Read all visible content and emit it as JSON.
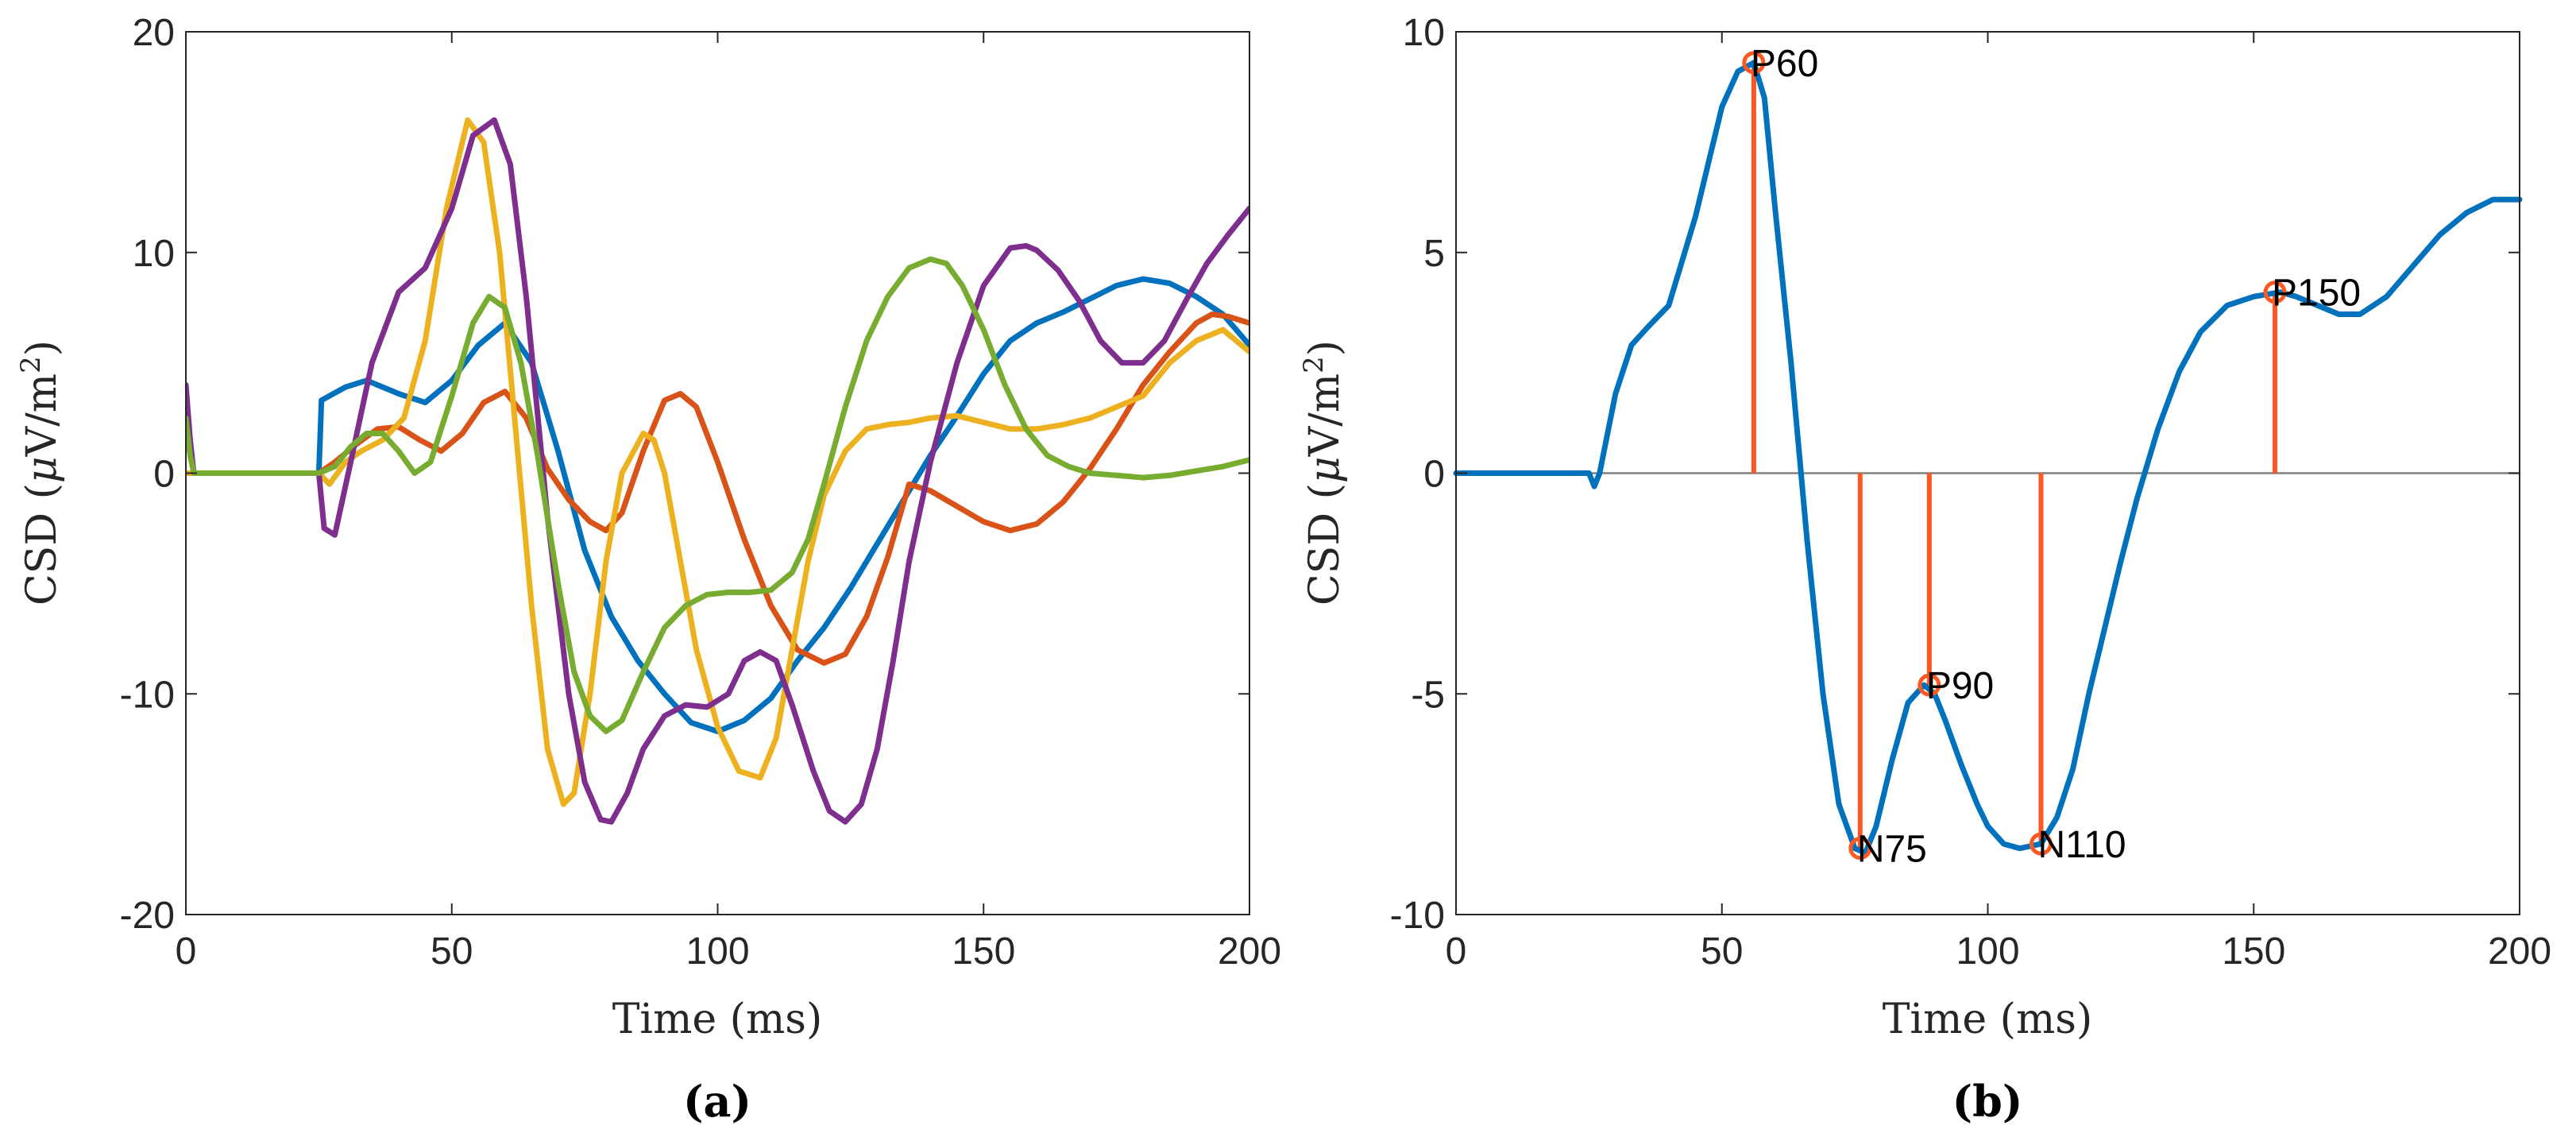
{
  "chart_data": [
    {
      "type": "line",
      "panel": "a",
      "caption": "(a)",
      "xlabel": "Time (ms)",
      "ylabel": "CSD (μV/m²)",
      "ylabel_parts": {
        "prefix": "CSD (",
        "mu": "μ",
        "unit": "V/m",
        "exp": "2",
        "suffix": ")"
      },
      "xlim": [
        0,
        200
      ],
      "ylim": [
        -20,
        20
      ],
      "xticks": [
        0,
        50,
        100,
        150,
        200
      ],
      "yticks": [
        -20,
        -10,
        0,
        10,
        20
      ],
      "colors": {
        "blue": "#0072BD",
        "orange": "#D95319",
        "yellow": "#EDB120",
        "purple": "#7E2F8E",
        "green": "#77AC30",
        "axis": "#262626"
      },
      "series": [
        {
          "name": "blue",
          "color": "#0072BD",
          "x": [
            0,
            25,
            25.5,
            30,
            34,
            40,
            45,
            50,
            55,
            60,
            65,
            70,
            75,
            80,
            85,
            90,
            95,
            100,
            105,
            110,
            115,
            120,
            125,
            130,
            135,
            140,
            145,
            150,
            155,
            160,
            165,
            170,
            175,
            180,
            185,
            190,
            195,
            200
          ],
          "y": [
            0,
            0,
            3.3,
            3.9,
            4.2,
            3.6,
            3.2,
            4.2,
            5.8,
            6.8,
            5.0,
            1.0,
            -3.5,
            -6.5,
            -8.5,
            -10,
            -11.3,
            -11.7,
            -11.2,
            -10.2,
            -8.5,
            -7,
            -5.2,
            -3.2,
            -1.2,
            0.8,
            2.6,
            4.5,
            6.0,
            6.8,
            7.3,
            7.9,
            8.5,
            8.8,
            8.6,
            8.0,
            7.2,
            5.8
          ]
        },
        {
          "name": "orange",
          "color": "#D95319",
          "x": [
            0,
            25,
            28,
            32,
            36,
            40,
            44,
            48,
            52,
            56,
            60,
            64,
            68,
            72,
            76,
            79,
            82,
            86,
            90,
            93,
            96,
            100,
            105,
            110,
            115,
            120,
            124,
            128,
            132,
            136,
            140,
            145,
            150,
            155,
            160,
            165,
            170,
            175,
            180,
            185,
            190,
            193,
            196,
            200
          ],
          "y": [
            0,
            0,
            0.5,
            1.3,
            2.0,
            2.1,
            1.5,
            1.0,
            1.8,
            3.2,
            3.7,
            2.5,
            0.2,
            -1.2,
            -2.2,
            -2.6,
            -1.8,
            1.0,
            3.3,
            3.6,
            3.0,
            0.5,
            -3.0,
            -6.0,
            -8.0,
            -8.6,
            -8.2,
            -6.5,
            -3.8,
            -0.5,
            -0.8,
            -1.5,
            -2.2,
            -2.6,
            -2.3,
            -1.3,
            0.2,
            2.0,
            4.0,
            5.5,
            6.8,
            7.2,
            7.1,
            6.8
          ]
        },
        {
          "name": "yellow",
          "color": "#EDB120",
          "x": [
            0,
            25,
            27,
            30,
            33,
            37,
            41,
            45,
            49,
            53,
            56,
            59,
            62,
            65,
            68,
            71,
            73,
            76,
            79,
            82,
            86,
            88,
            90,
            93,
            96,
            100,
            104,
            108,
            111,
            114,
            117,
            120,
            124,
            128,
            132,
            136,
            140,
            145,
            150,
            155,
            160,
            165,
            170,
            175,
            180,
            185,
            190,
            195,
            200
          ],
          "y": [
            0,
            0,
            -0.5,
            0.5,
            1.0,
            1.5,
            2.5,
            6.0,
            12.0,
            16.0,
            15.0,
            10.0,
            2.0,
            -6.0,
            -12.5,
            -15.0,
            -14.5,
            -10.0,
            -4.0,
            0.0,
            1.8,
            1.5,
            0.0,
            -4.0,
            -8.0,
            -11.5,
            -13.5,
            -13.8,
            -12.0,
            -8.0,
            -4.0,
            -1.0,
            1.0,
            2.0,
            2.2,
            2.3,
            2.5,
            2.6,
            2.3,
            2.0,
            2.0,
            2.2,
            2.5,
            3.0,
            3.5,
            5.0,
            6.0,
            6.5,
            5.5
          ]
        },
        {
          "name": "purple",
          "color": "#7E2F8E",
          "x": [
            0,
            0.8,
            1.5,
            25,
            26,
            28,
            31,
            35,
            40,
            45,
            50,
            54,
            58,
            61,
            64,
            68,
            72,
            75,
            78,
            80,
            83,
            86,
            90,
            94,
            98,
            102,
            105,
            108,
            111,
            114,
            118,
            121,
            124,
            127,
            130,
            133,
            136,
            140,
            145,
            150,
            155,
            158,
            160,
            164,
            168,
            172,
            176,
            180,
            184,
            188,
            192,
            196,
            200
          ],
          "y": [
            4.0,
            1.5,
            0,
            0,
            -2.5,
            -2.8,
            0.5,
            5.0,
            8.2,
            9.3,
            12.0,
            15.3,
            16.0,
            14.0,
            8.0,
            -2.0,
            -10.0,
            -14.0,
            -15.7,
            -15.8,
            -14.5,
            -12.5,
            -11.0,
            -10.5,
            -10.6,
            -10.0,
            -8.5,
            -8.1,
            -8.5,
            -10.5,
            -13.5,
            -15.3,
            -15.8,
            -15.0,
            -12.5,
            -8.5,
            -4.0,
            0.5,
            5.0,
            8.5,
            10.2,
            10.3,
            10.1,
            9.2,
            7.8,
            6.0,
            5.0,
            5.0,
            6.0,
            7.8,
            9.5,
            10.8,
            12.0
          ]
        },
        {
          "name": "green",
          "color": "#77AC30",
          "x": [
            0,
            0.8,
            1.5,
            25,
            28,
            31,
            34,
            37,
            40,
            43,
            46,
            50,
            54,
            57,
            60,
            63,
            66,
            70,
            73,
            76,
            79,
            82,
            86,
            90,
            94,
            98,
            102,
            106,
            110,
            114,
            117,
            120,
            124,
            128,
            132,
            136,
            140,
            143,
            146,
            150,
            154,
            158,
            162,
            166,
            170,
            175,
            180,
            185,
            190,
            195,
            200
          ],
          "y": [
            2.5,
            0.8,
            0,
            0,
            0.3,
            1.2,
            1.8,
            1.8,
            1.0,
            0.0,
            0.5,
            3.5,
            6.8,
            8.0,
            7.5,
            5.0,
            1.0,
            -5.0,
            -9.0,
            -11.0,
            -11.7,
            -11.2,
            -9.0,
            -7.0,
            -6.0,
            -5.5,
            -5.4,
            -5.4,
            -5.3,
            -4.5,
            -3.0,
            -0.5,
            3.0,
            6.0,
            8.0,
            9.3,
            9.7,
            9.5,
            8.5,
            6.5,
            4.0,
            2.0,
            0.8,
            0.3,
            0.0,
            -0.1,
            -0.2,
            -0.1,
            0.1,
            0.3,
            0.6
          ]
        }
      ]
    },
    {
      "type": "line",
      "panel": "b",
      "caption": "(b)",
      "xlabel": "Time (ms)",
      "ylabel": "CSD (μV/m²)",
      "ylabel_parts": {
        "prefix": "CSD (",
        "mu": "μ",
        "unit": "V/m",
        "exp": "2",
        "suffix": ")"
      },
      "xlim": [
        0,
        200
      ],
      "ylim": [
        -10,
        10
      ],
      "xticks": [
        0,
        50,
        100,
        150,
        200
      ],
      "yticks": [
        -10,
        -5,
        0,
        5,
        10
      ],
      "zero_line": true,
      "colors": {
        "curve": "#0072BD",
        "stem": "#FF5722",
        "zero": "#808080",
        "axis": "#262626"
      },
      "series": [
        {
          "name": "mean",
          "color": "#0072BD",
          "x": [
            0,
            25,
            26,
            27,
            30,
            33,
            36,
            40,
            45,
            50,
            53,
            56,
            58,
            60,
            63,
            66,
            69,
            72,
            75,
            77,
            79,
            82,
            85,
            88,
            90,
            92,
            95,
            98,
            100,
            103,
            106,
            110,
            113,
            116,
            119,
            122,
            125,
            128,
            132,
            136,
            140,
            145,
            150,
            155,
            158,
            162,
            166,
            170,
            175,
            180,
            185,
            190,
            195,
            200
          ],
          "y": [
            0,
            0,
            -0.3,
            0,
            1.8,
            2.9,
            3.3,
            3.8,
            5.8,
            8.3,
            9.1,
            9.3,
            8.5,
            6.0,
            2.5,
            -1.5,
            -5.0,
            -7.5,
            -8.5,
            -8.6,
            -8.0,
            -6.5,
            -5.2,
            -4.8,
            -5.0,
            -5.6,
            -6.6,
            -7.5,
            -8.0,
            -8.4,
            -8.5,
            -8.4,
            -7.8,
            -6.7,
            -5.0,
            -3.5,
            -2.0,
            -0.6,
            1.0,
            2.3,
            3.2,
            3.8,
            4.0,
            4.1,
            4.0,
            3.8,
            3.6,
            3.6,
            4.0,
            4.7,
            5.4,
            5.9,
            6.2,
            6.2
          ]
        }
      ],
      "peaks": [
        {
          "label": "P60",
          "x": 56,
          "y": 9.3
        },
        {
          "label": "N75",
          "x": 76,
          "y": -8.5
        },
        {
          "label": "P90",
          "x": 89,
          "y": -4.8
        },
        {
          "label": "N110",
          "x": 110,
          "y": -8.4
        },
        {
          "label": "P150",
          "x": 154,
          "y": 4.1
        }
      ]
    }
  ]
}
